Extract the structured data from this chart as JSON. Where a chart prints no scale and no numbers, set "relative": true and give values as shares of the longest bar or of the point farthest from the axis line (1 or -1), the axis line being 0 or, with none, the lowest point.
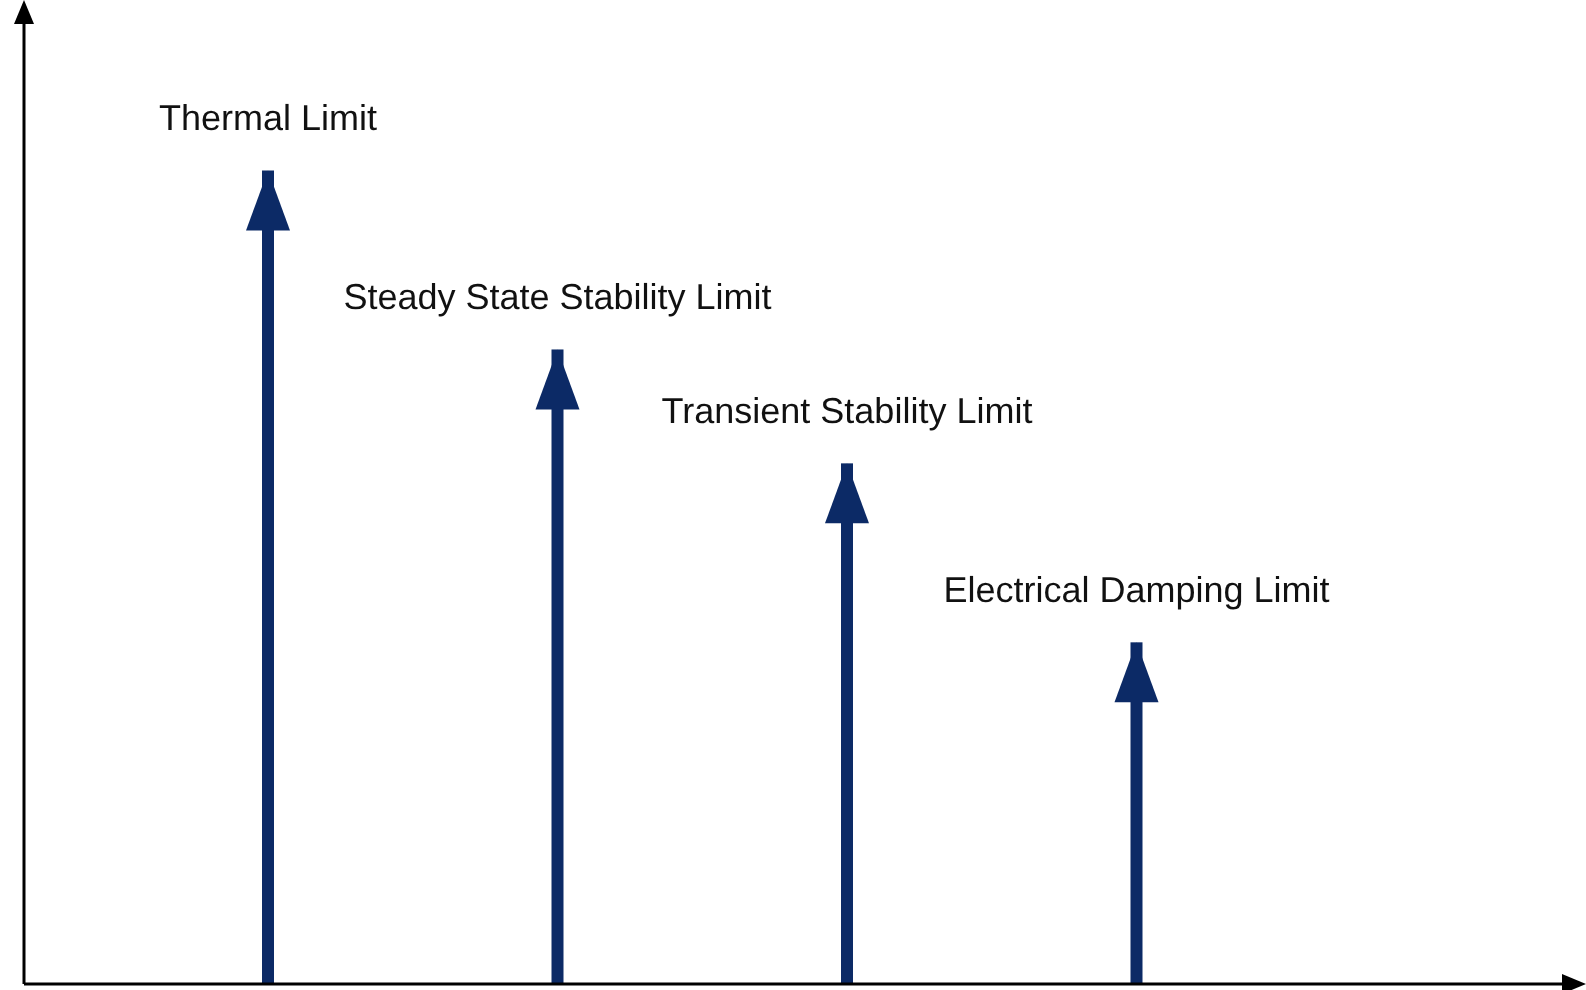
{
  "chart_data": {
    "type": "bar",
    "relative": true,
    "categories": [
      "Thermal Limit",
      "Steady State Stability Limit",
      "Transient Stability Limit",
      "Electrical Damping Limit"
    ],
    "values": [
      1,
      0.78,
      0.64,
      0.42
    ],
    "color": "#0c2a66"
  }
}
